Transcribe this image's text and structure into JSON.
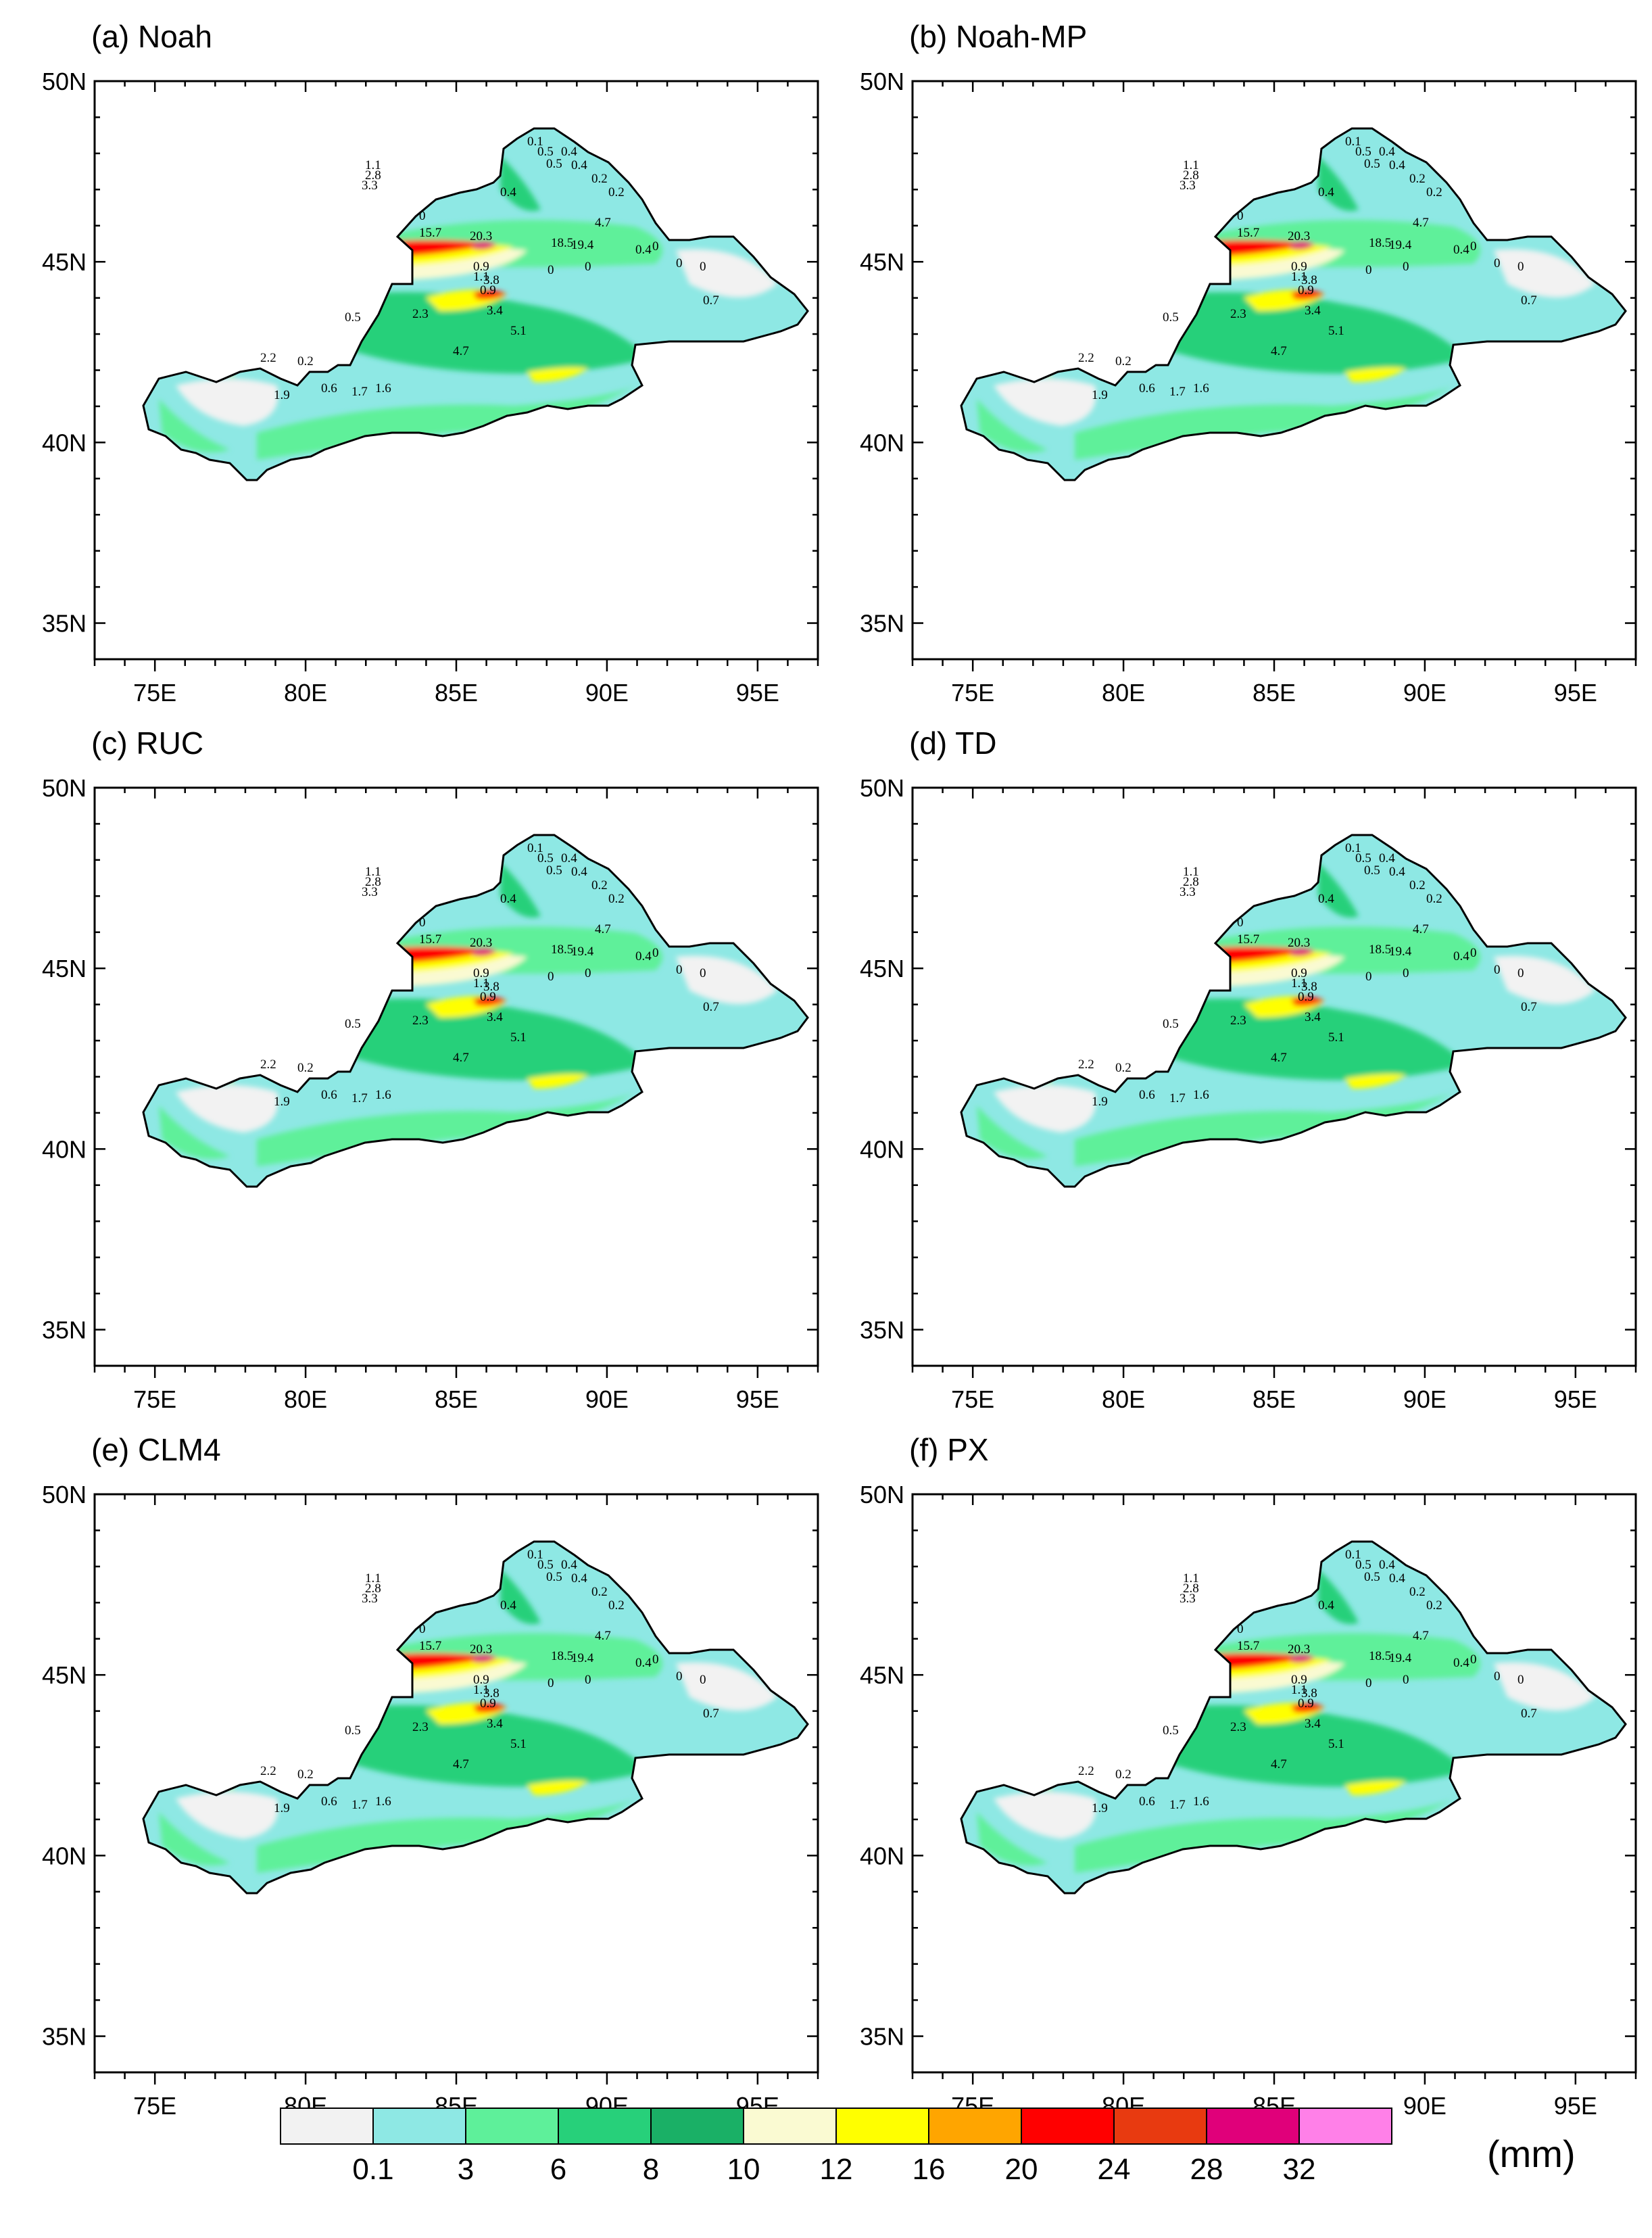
{
  "panels": [
    {
      "title": "(a) Noah"
    },
    {
      "title": "(b) Noah-MP"
    },
    {
      "title": "(c) RUC"
    },
    {
      "title": "(d) TD"
    },
    {
      "title": "(e) CLM4"
    },
    {
      "title": "(f) PX"
    }
  ],
  "axes": {
    "lat_labels": [
      "50N",
      "45N",
      "40N",
      "35N"
    ],
    "lon_labels": [
      "75E",
      "80E",
      "85E",
      "90E",
      "95E"
    ],
    "lat_values": [
      50,
      45,
      40,
      35
    ],
    "lon_values": [
      75,
      80,
      85,
      90,
      95
    ],
    "lon_range": [
      73,
      97
    ],
    "lat_range": [
      34,
      50
    ]
  },
  "colorbar": {
    "labels": [
      "0.1",
      "3",
      "6",
      "8",
      "10",
      "12",
      "16",
      "20",
      "24",
      "28",
      "32"
    ],
    "colors": [
      "#f2f2f2",
      "#8ee8e4",
      "#5ef09a",
      "#27d07a",
      "#1ab066",
      "#fafad2",
      "#ffff00",
      "#ffa500",
      "#ff0000",
      "#e83a10",
      "#e0007a",
      "#ff80e8"
    ],
    "unit": "(mm)"
  },
  "stations": [
    "0.1",
    "0.5",
    "0.4",
    "0.5",
    "0.4",
    "0.2",
    "4.7",
    "0.4",
    "0",
    "0.9",
    "1.1",
    "3.8",
    "0.9",
    "3.4",
    "5.1",
    "4.7",
    "1.6",
    "1.7",
    "0.6",
    "1.9",
    "2.2",
    "0.2",
    "0.5",
    "2.3",
    "18.5",
    "19.4",
    "20.3",
    "15.7",
    "0",
    "0",
    "0",
    "0",
    "0.7",
    "1.1",
    "2.8",
    "3.3",
    "0.4",
    "0.2",
    "0"
  ]
}
